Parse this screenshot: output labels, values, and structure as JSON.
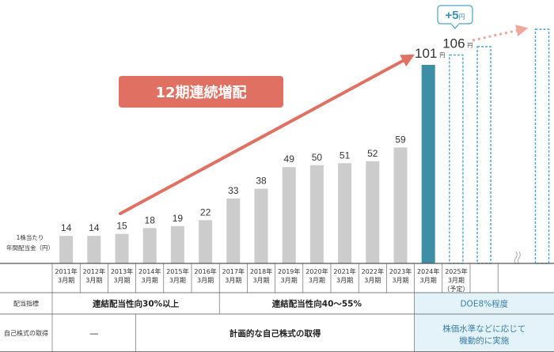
{
  "chart_data": {
    "type": "bar",
    "ylabel_lines": [
      "1株当たり",
      "年間配当金（円）"
    ],
    "unit": "円",
    "categories": [
      [
        "2011年",
        "3月期"
      ],
      [
        "2012年",
        "3月期"
      ],
      [
        "2013年",
        "3月期"
      ],
      [
        "2014年",
        "3月期"
      ],
      [
        "2015年",
        "3月期"
      ],
      [
        "2016年",
        "3月期"
      ],
      [
        "2017年",
        "3月期"
      ],
      [
        "2018年",
        "3月期"
      ],
      [
        "2019年",
        "3月期"
      ],
      [
        "2020年",
        "3月期"
      ],
      [
        "2021年",
        "3月期"
      ],
      [
        "2022年",
        "3月期"
      ],
      [
        "2023年",
        "3月期"
      ],
      [
        "2024年",
        "3月期"
      ],
      [
        "2025年",
        "3月期",
        "（予定）"
      ]
    ],
    "values": [
      14,
      14,
      15,
      18,
      19,
      22,
      33,
      38,
      49,
      50,
      51,
      52,
      59,
      101,
      106
    ],
    "value_labels": [
      "14",
      "14",
      "15",
      "18",
      "19",
      "22",
      "33",
      "38",
      "49",
      "50",
      "51",
      "52",
      "59",
      "101",
      "106"
    ],
    "highlight_index": 13,
    "forecast_index": 14,
    "future_placeholders": 2,
    "ylim": [
      0,
      110
    ],
    "annotations": {
      "streak_label": "12期連続増配",
      "increase_label": "+5",
      "increase_unit": "円"
    },
    "colors": {
      "bar": "#cccccc",
      "highlight": "#3e8fa6",
      "dashed": "#4aa3c9",
      "arrow": "#e07061",
      "banner": "#e07061",
      "policy_bg": "#e4f2f9",
      "policy_text": "#3a7fa8"
    }
  },
  "table": {
    "rows": [
      {
        "header": "配当指標",
        "segments": [
          {
            "text": "連結配当性向30%以上",
            "start": 0,
            "end": 6,
            "highlight": false
          },
          {
            "text": "連結配当性向40～55%",
            "start": 6,
            "end": 13,
            "highlight": false
          },
          {
            "text": "DOE8%程度",
            "start": 13,
            "end": 17,
            "highlight": true
          }
        ]
      },
      {
        "header": "自己株式の取得",
        "segments": [
          {
            "text": "―",
            "start": 0,
            "end": 3,
            "highlight": false
          },
          {
            "text": "計画的な自己株式の取得",
            "start": 3,
            "end": 13,
            "highlight": false
          },
          {
            "text": "株価水準などに応じて",
            "text2": "機動的に実施",
            "start": 13,
            "end": 17,
            "highlight": true
          }
        ]
      }
    ]
  }
}
